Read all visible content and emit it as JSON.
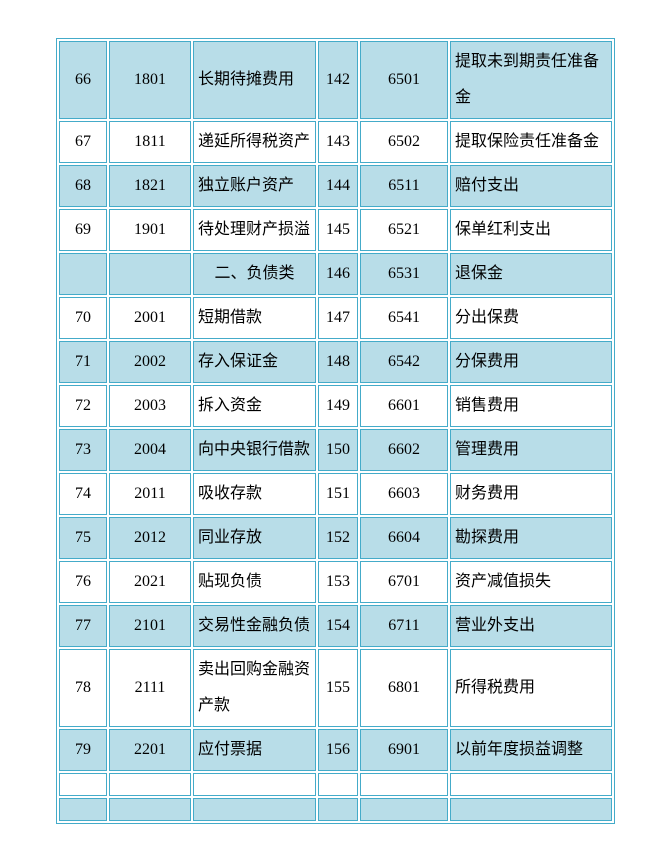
{
  "page": {
    "background": "#ffffff"
  },
  "table": {
    "title": "chinese-chart-of-accounts-continuation",
    "border_color": "#44abc9",
    "shade_color": "#b8dde8",
    "text_color": "#000000",
    "columns": [
      "row-number-left",
      "account-code-left",
      "account-name-left",
      "row-number-right",
      "account-code-right",
      "account-name-right"
    ],
    "rows": [
      {
        "shade": "blue",
        "cells": [
          "66",
          "1801",
          "长期待摊费用",
          "142",
          "6501",
          "提取未到期责任准备金"
        ]
      },
      {
        "shade": "white",
        "cells": [
          "67",
          "1811",
          "递延所得税资产",
          "143",
          "6502",
          "提取保险责任准备金"
        ]
      },
      {
        "shade": "blue",
        "cells": [
          "68",
          "1821",
          "独立账户资产",
          "144",
          "6511",
          "赔付支出"
        ]
      },
      {
        "shade": "white",
        "cells": [
          "69",
          "1901",
          "待处理财产损溢",
          "145",
          "6521",
          "保单红利支出"
        ]
      },
      {
        "shade": "blue",
        "section_header": true,
        "cells": [
          "",
          "",
          "二、负债类",
          "146",
          "6531",
          "退保金"
        ]
      },
      {
        "shade": "white",
        "cells": [
          "70",
          "2001",
          "短期借款",
          "147",
          "6541",
          "分出保费"
        ]
      },
      {
        "shade": "blue",
        "cells": [
          "71",
          "2002",
          "存入保证金",
          "148",
          "6542",
          "分保费用"
        ]
      },
      {
        "shade": "white",
        "cells": [
          "72",
          "2003",
          "拆入资金",
          "149",
          "6601",
          "销售费用"
        ]
      },
      {
        "shade": "blue",
        "cells": [
          "73",
          "2004",
          "向中央银行借款",
          "150",
          "6602",
          "管理费用"
        ]
      },
      {
        "shade": "white",
        "cells": [
          "74",
          "2011",
          "吸收存款",
          "151",
          "6603",
          "财务费用"
        ]
      },
      {
        "shade": "blue",
        "cells": [
          "75",
          "2012",
          "同业存放",
          "152",
          "6604",
          "勘探费用"
        ]
      },
      {
        "shade": "white",
        "cells": [
          "76",
          "2021",
          "贴现负债",
          "153",
          "6701",
          "资产减值损失"
        ]
      },
      {
        "shade": "blue",
        "cells": [
          "77",
          "2101",
          "交易性金融负债",
          "154",
          "6711",
          "营业外支出"
        ]
      },
      {
        "shade": "white",
        "cells": [
          "78",
          "2111",
          "卖出回购金融资产款",
          "155",
          "6801",
          "所得税费用"
        ]
      },
      {
        "shade": "blue",
        "cells": [
          "79",
          "2201",
          "应付票据",
          "156",
          "6901",
          "以前年度损益调整"
        ]
      },
      {
        "shade": "white",
        "short": true,
        "cells": [
          "",
          "",
          "",
          "",
          "",
          ""
        ]
      },
      {
        "shade": "blue",
        "short": true,
        "cells": [
          "",
          "",
          "",
          "",
          "",
          ""
        ]
      }
    ]
  }
}
